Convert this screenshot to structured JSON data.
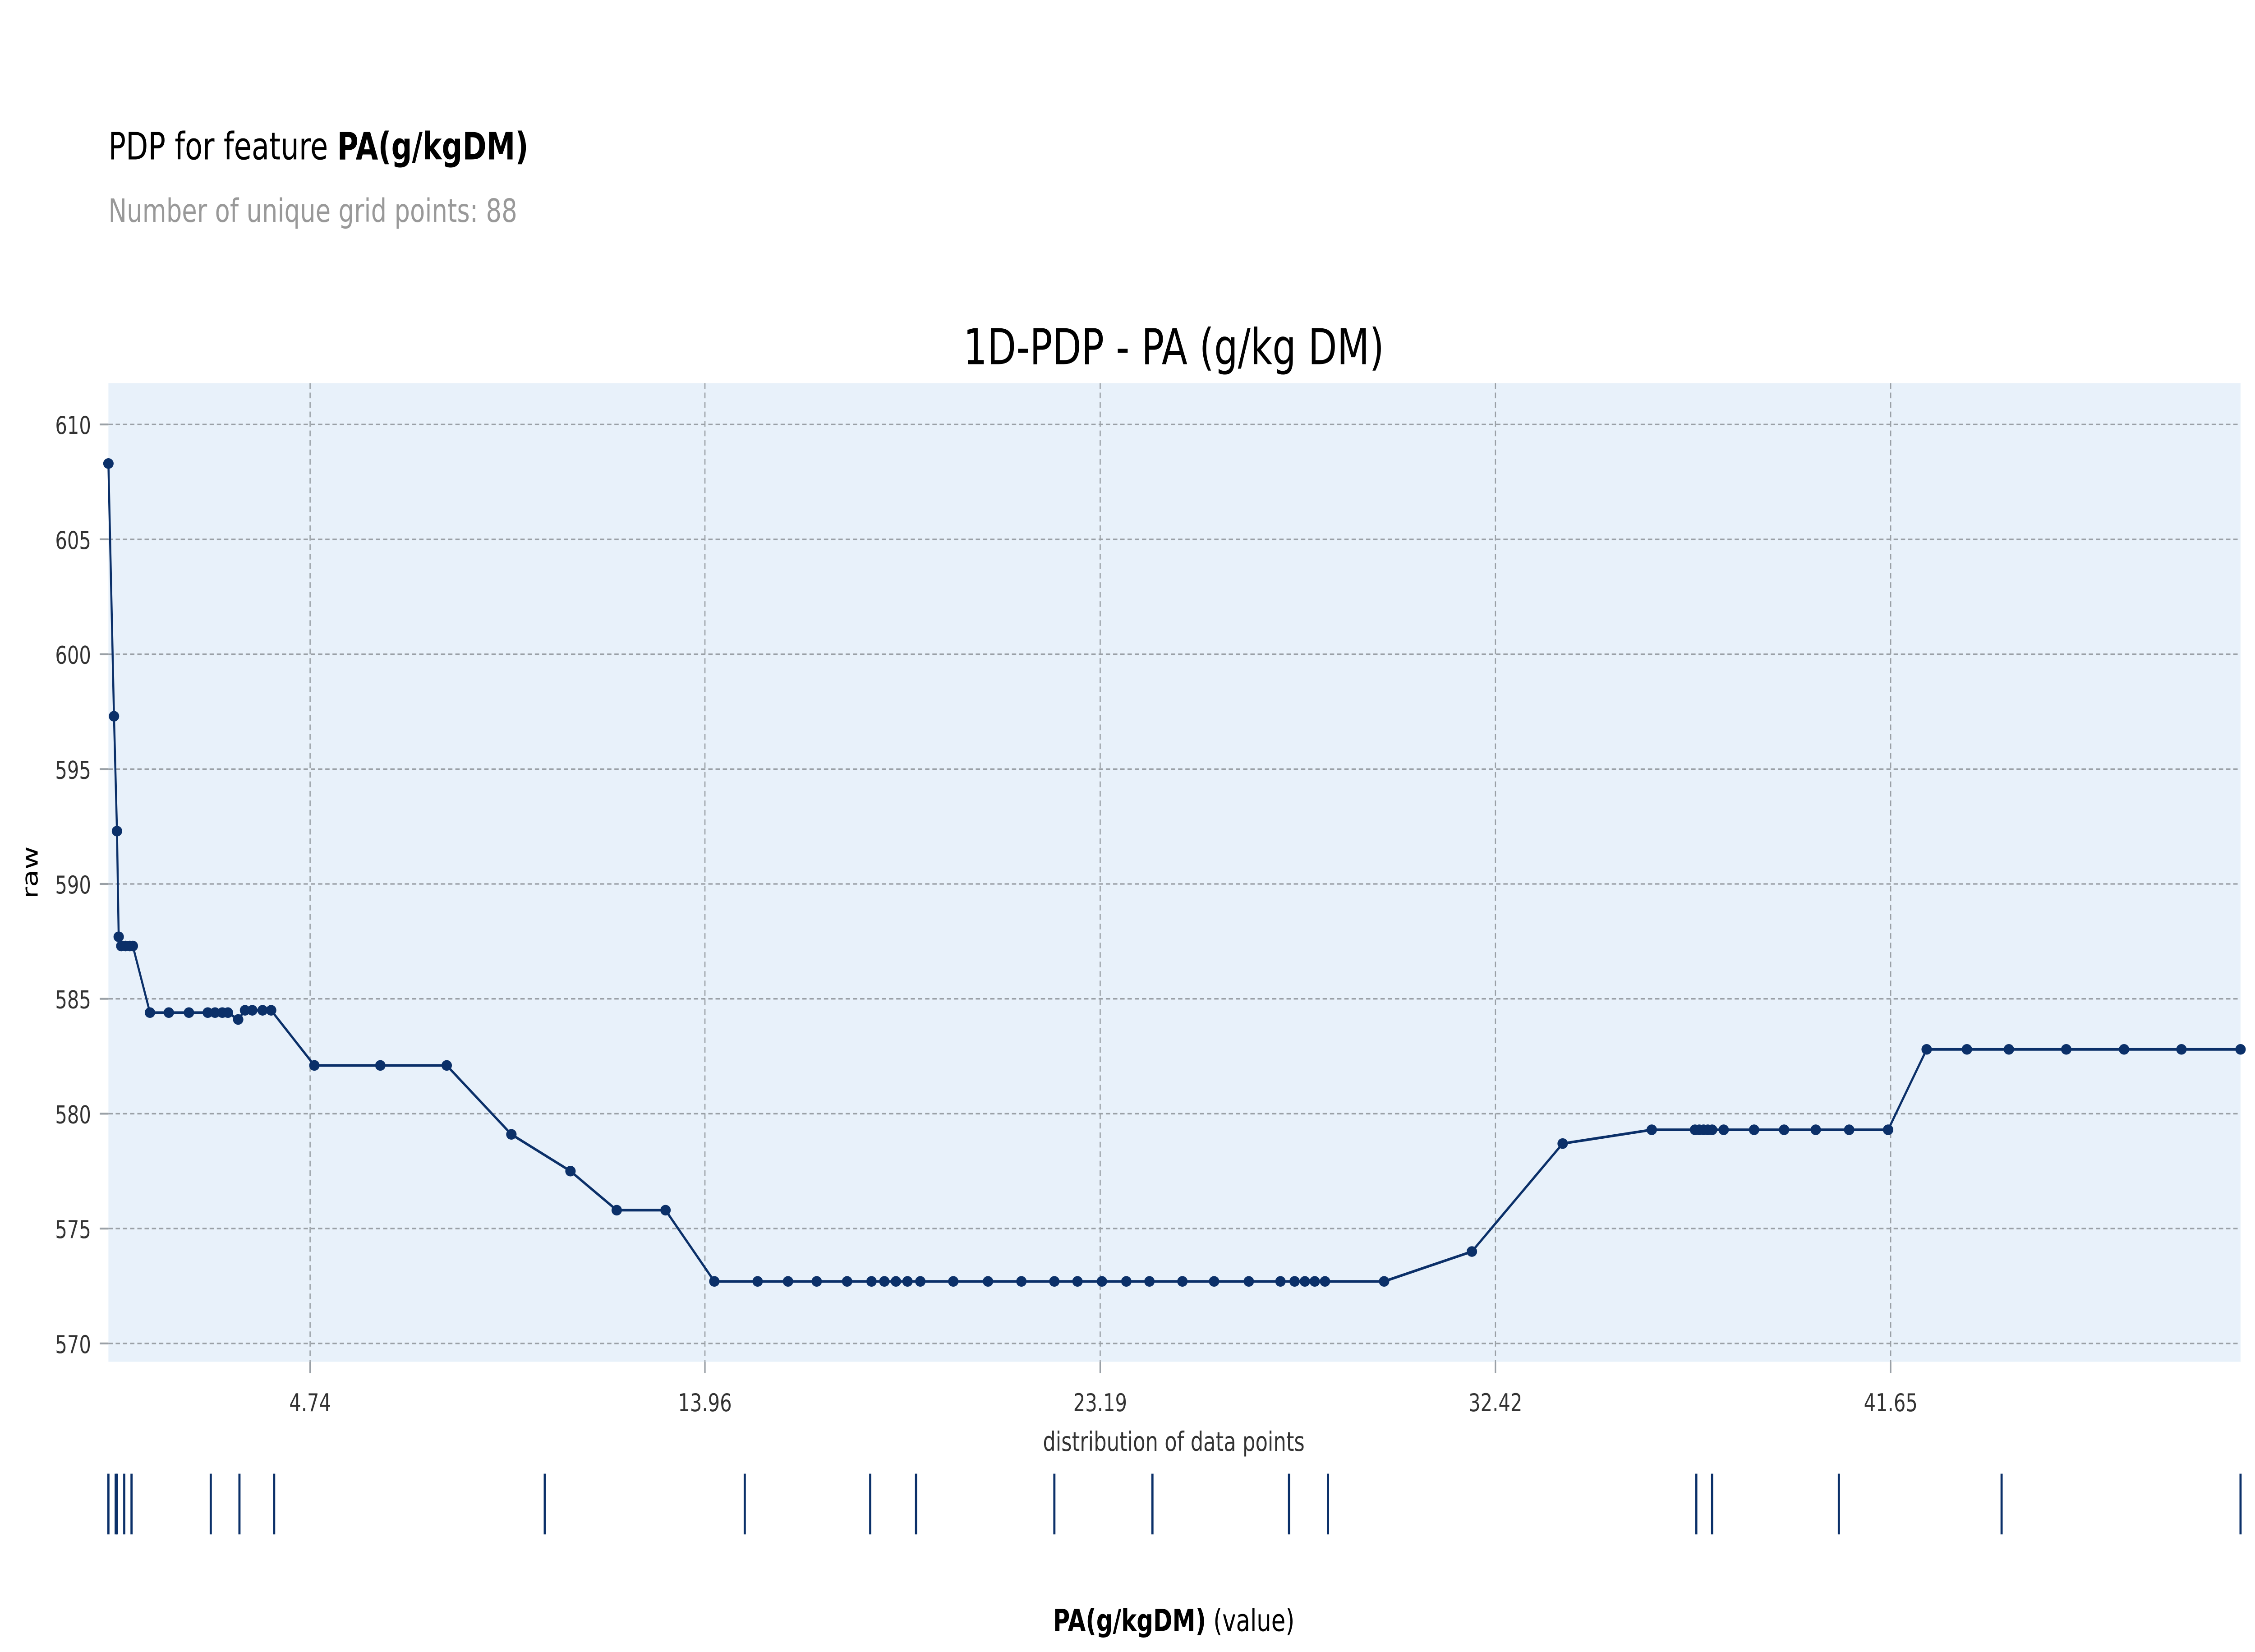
{
  "header": {
    "title_prefix": "PDP for feature ",
    "title_feature": "PA(g/kgDM)",
    "subtitle": "Number of unique grid points: 88"
  },
  "chart_data": {
    "type": "line",
    "title": "1D-PDP - PA (g/kg DM)",
    "ylabel": "raw",
    "xlabel_bold": "PA(g/kgDM)",
    "xlabel_suffix": " (value)",
    "rug_title": "distribution of data points",
    "xlim": [
      0.03,
      49.82
    ],
    "ylim": [
      569.2,
      611.8
    ],
    "x_ticks": [
      4.74,
      13.96,
      23.19,
      32.42,
      41.65
    ],
    "x_tick_labels": [
      "4.74",
      "13.96",
      "23.19",
      "32.42",
      "41.65"
    ],
    "y_ticks": [
      570,
      575,
      580,
      585,
      590,
      595,
      600,
      605,
      610
    ],
    "y_tick_labels": [
      "570",
      "575",
      "580",
      "585",
      "590",
      "595",
      "600",
      "605",
      "610"
    ],
    "grid": true,
    "colors": {
      "line": "#0b3069",
      "plot_bg": "#e8f1fa",
      "rug": "#0b3069",
      "subtitle": "#999999"
    },
    "x": [
      0.03,
      0.16,
      0.23,
      0.27,
      0.33,
      0.43,
      0.53,
      0.6,
      1.0,
      1.44,
      1.91,
      2.35,
      2.52,
      2.69,
      2.82,
      3.06,
      3.22,
      3.39,
      3.63,
      3.83,
      4.84,
      6.38,
      7.93,
      9.44,
      10.82,
      11.9,
      13.04,
      14.18,
      15.19,
      15.9,
      16.57,
      17.28,
      17.85,
      18.15,
      18.42,
      18.69,
      18.99,
      19.76,
      20.57,
      21.35,
      22.12,
      22.66,
      23.23,
      23.8,
      24.34,
      25.11,
      25.85,
      26.66,
      27.4,
      27.73,
      27.97,
      28.2,
      28.44,
      29.82,
      31.87,
      33.99,
      36.07,
      37.08,
      37.18,
      37.28,
      37.38,
      37.48,
      37.75,
      38.46,
      39.16,
      39.9,
      40.68,
      41.59,
      42.49,
      43.43,
      44.41,
      45.75,
      47.1,
      48.44,
      49.82
    ],
    "y": [
      608.3,
      597.3,
      592.3,
      587.7,
      587.3,
      587.3,
      587.3,
      587.3,
      584.4,
      584.4,
      584.4,
      584.4,
      584.4,
      584.4,
      584.4,
      584.1,
      584.5,
      584.5,
      584.5,
      584.5,
      582.1,
      582.1,
      582.1,
      579.1,
      577.5,
      575.8,
      575.8,
      572.7,
      572.7,
      572.7,
      572.7,
      572.7,
      572.7,
      572.7,
      572.7,
      572.7,
      572.7,
      572.7,
      572.7,
      572.7,
      572.7,
      572.7,
      572.7,
      572.7,
      572.7,
      572.7,
      572.7,
      572.7,
      572.7,
      572.7,
      572.7,
      572.7,
      572.7,
      572.7,
      574.0,
      578.7,
      579.3,
      579.3,
      579.3,
      579.3,
      579.3,
      579.3,
      579.3,
      579.3,
      579.3,
      579.3,
      579.3,
      579.3,
      582.8,
      582.8,
      582.8,
      582.8,
      582.8,
      582.8,
      582.8
    ],
    "rug_x": [
      0.03,
      0.2,
      0.23,
      0.4,
      0.57,
      2.42,
      3.09,
      3.9,
      10.22,
      14.89,
      17.82,
      18.89,
      22.12,
      24.41,
      27.6,
      28.51,
      37.11,
      37.48,
      40.44,
      44.24,
      49.82
    ]
  }
}
